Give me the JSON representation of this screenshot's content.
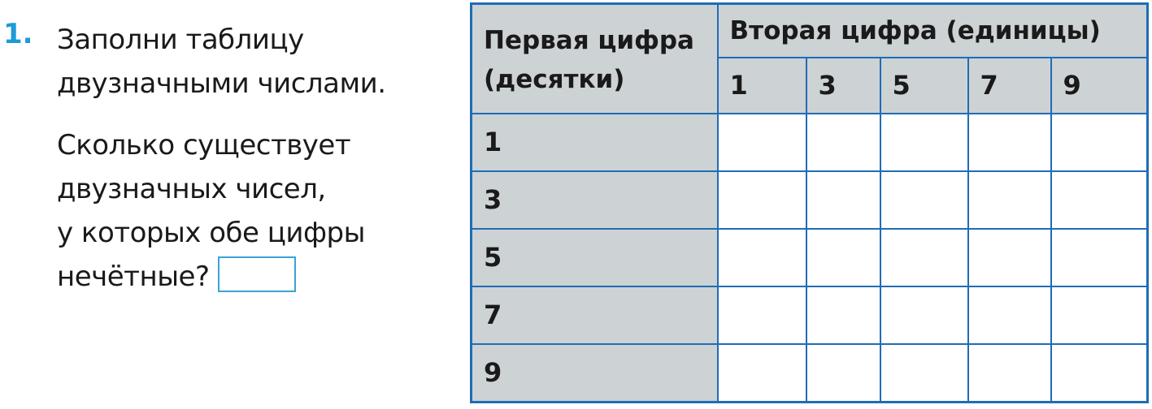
{
  "task": {
    "number": "1.",
    "instruction_lines": [
      "Заполни таблицу",
      "двузначными числами."
    ],
    "question_lines": [
      "Сколько существует",
      "двузначных чисел,",
      "у которых обе цифры",
      "нечётные?"
    ],
    "answer": ""
  },
  "table": {
    "row_header": [
      "Первая цифра",
      "(десятки)"
    ],
    "col_header": "Вторая цифра (единицы)",
    "columns": [
      "1",
      "3",
      "5",
      "7",
      "9"
    ],
    "rows": [
      "1",
      "3",
      "5",
      "7",
      "9"
    ]
  },
  "colors": {
    "accent": "#1b9bd7",
    "grid": "#1e6db5",
    "header_fill": "#cdd2d5"
  }
}
